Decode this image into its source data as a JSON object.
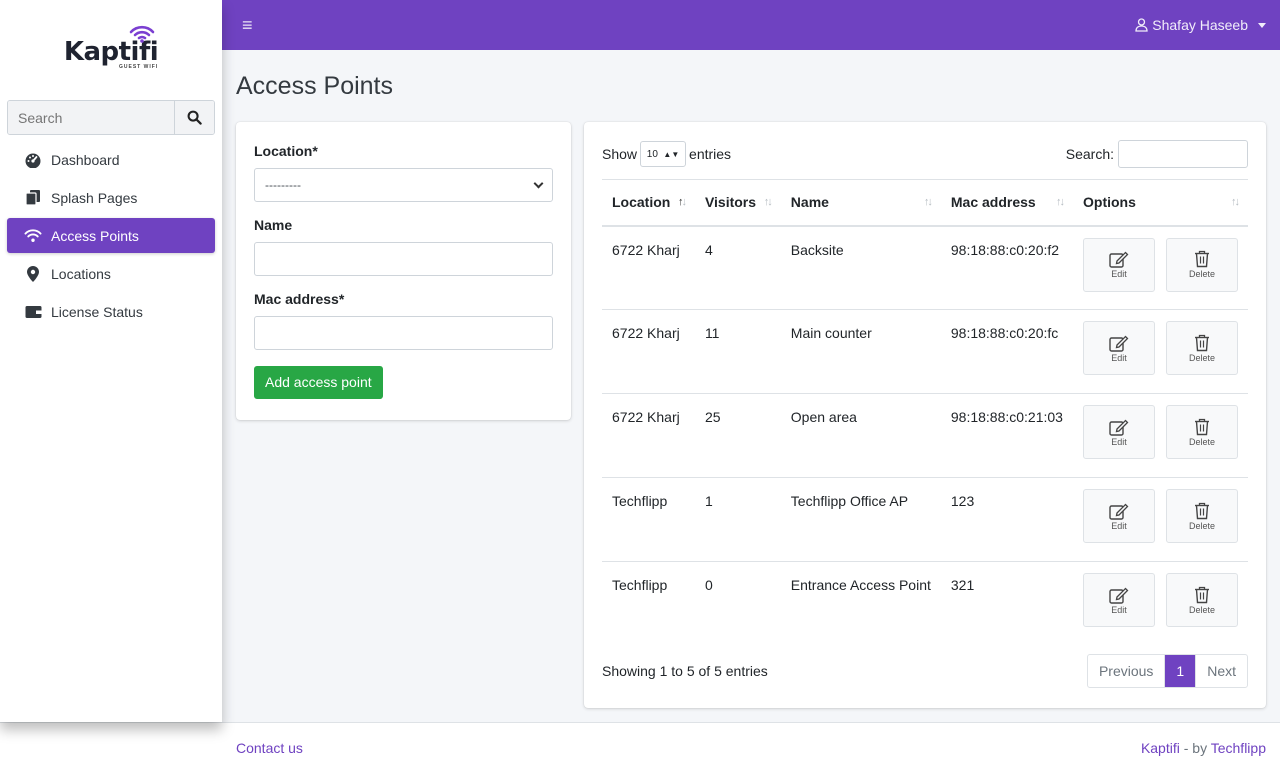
{
  "brand": {
    "name": "Kaptifi",
    "tagline": "GUEST WIFI"
  },
  "sidebar": {
    "search_placeholder": "Search",
    "items": [
      {
        "label": "Dashboard",
        "icon": "dashboard-gauge-icon"
      },
      {
        "label": "Splash Pages",
        "icon": "copy-icon"
      },
      {
        "label": "Access Points",
        "icon": "wifi-icon",
        "active": true
      },
      {
        "label": "Locations",
        "icon": "map-marker-icon"
      },
      {
        "label": "License Status",
        "icon": "wallet-icon"
      }
    ]
  },
  "topbar": {
    "menu_icon": "≡",
    "user_name": "Shafay Haseeb"
  },
  "page": {
    "title": "Access Points"
  },
  "form": {
    "location_label": "Location*",
    "location_value": "---------",
    "name_label": "Name",
    "mac_label": "Mac address*",
    "submit_label": "Add access point"
  },
  "table": {
    "show_label": "Show",
    "length_value": "10",
    "entries_label": "entries",
    "search_label": "Search:",
    "columns": [
      "Location",
      "Visitors",
      "Name",
      "Mac address",
      "Options"
    ],
    "rows": [
      {
        "location": "6722 Kharj",
        "visitors": "4",
        "name": "Backsite",
        "mac": "98:18:88:c0:20:f2"
      },
      {
        "location": "6722 Kharj",
        "visitors": "11",
        "name": "Main counter",
        "mac": "98:18:88:c0:20:fc"
      },
      {
        "location": "6722 Kharj",
        "visitors": "25",
        "name": "Open area",
        "mac": "98:18:88:c0:21:03"
      },
      {
        "location": "Techflipp",
        "visitors": "1",
        "name": "Techflipp Office AP",
        "mac": "123"
      },
      {
        "location": "Techflipp",
        "visitors": "0",
        "name": "Entrance Access Point",
        "mac": "321"
      }
    ],
    "edit_label": "Edit",
    "delete_label": "Delete",
    "info": "Showing 1 to 5 of 5 entries",
    "pager": {
      "previous": "Previous",
      "current": "1",
      "next": "Next"
    }
  },
  "footer": {
    "contact": "Contact us",
    "brand": "Kaptifi",
    "by": " - by ",
    "company": "Techflipp"
  },
  "colors": {
    "accent": "#6f42c1",
    "success": "#28a745"
  }
}
